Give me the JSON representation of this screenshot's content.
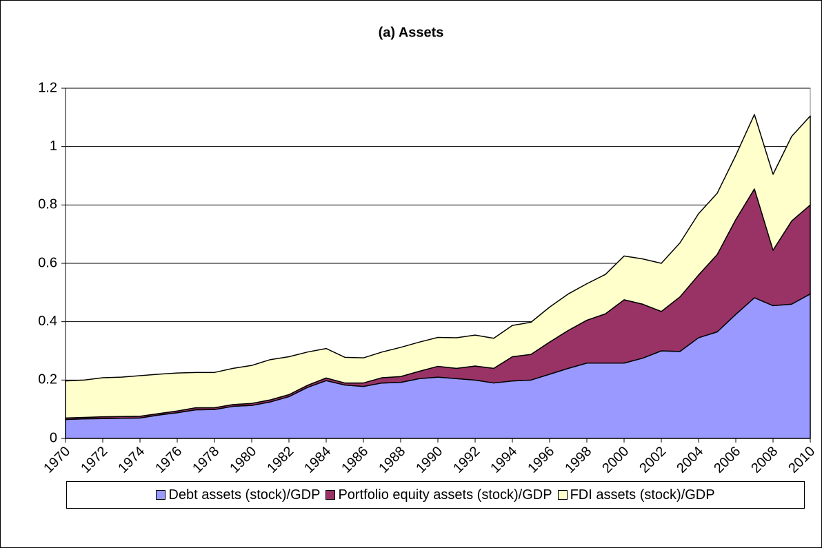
{
  "chart_data": {
    "type": "stacked_area",
    "title": "(a) Assets",
    "x": [
      1970,
      1971,
      1972,
      1973,
      1974,
      1975,
      1976,
      1977,
      1978,
      1979,
      1980,
      1981,
      1982,
      1983,
      1984,
      1985,
      1986,
      1987,
      1988,
      1989,
      1990,
      1991,
      1992,
      1993,
      1994,
      1995,
      1996,
      1997,
      1998,
      1999,
      2000,
      2001,
      2002,
      2003,
      2004,
      2005,
      2006,
      2007,
      2008,
      2009,
      2010
    ],
    "xlim": [
      1970,
      2010
    ],
    "xticks": [
      1970,
      1972,
      1974,
      1976,
      1978,
      1980,
      1982,
      1984,
      1986,
      1988,
      1990,
      1992,
      1994,
      1996,
      1998,
      2000,
      2002,
      2004,
      2006,
      2008,
      2010
    ],
    "ylim": [
      0,
      1.2
    ],
    "yticks": [
      0,
      0.2,
      0.4,
      0.6,
      0.8,
      1,
      1.2
    ],
    "grid": true,
    "legend": "bottom",
    "series": [
      {
        "name": "Debt assets (stock)/GDP",
        "color": "#9999ff",
        "values": [
          0.065,
          0.067,
          0.068,
          0.069,
          0.07,
          0.08,
          0.088,
          0.098,
          0.099,
          0.11,
          0.113,
          0.125,
          0.143,
          0.175,
          0.198,
          0.183,
          0.178,
          0.19,
          0.192,
          0.205,
          0.21,
          0.205,
          0.2,
          0.19,
          0.197,
          0.2,
          0.22,
          0.24,
          0.258,
          0.258,
          0.258,
          0.275,
          0.3,
          0.298,
          0.345,
          0.365,
          0.425,
          0.482,
          0.455,
          0.46,
          0.495
        ]
      },
      {
        "name": "Portfolio equity assets (stock)/GDP",
        "color": "#993366",
        "values": [
          0.005,
          0.005,
          0.006,
          0.006,
          0.006,
          0.005,
          0.006,
          0.007,
          0.006,
          0.006,
          0.007,
          0.007,
          0.007,
          0.007,
          0.009,
          0.007,
          0.012,
          0.018,
          0.02,
          0.025,
          0.037,
          0.035,
          0.048,
          0.05,
          0.083,
          0.088,
          0.11,
          0.13,
          0.147,
          0.169,
          0.217,
          0.185,
          0.135,
          0.187,
          0.215,
          0.265,
          0.325,
          0.373,
          0.19,
          0.285,
          0.305
        ]
      },
      {
        "name": "FDI assets (stock)/GDP",
        "color": "#ffffcc",
        "values": [
          0.127,
          0.128,
          0.134,
          0.135,
          0.139,
          0.135,
          0.13,
          0.121,
          0.121,
          0.124,
          0.13,
          0.138,
          0.13,
          0.114,
          0.101,
          0.088,
          0.086,
          0.088,
          0.1,
          0.1,
          0.099,
          0.105,
          0.106,
          0.103,
          0.107,
          0.11,
          0.12,
          0.125,
          0.125,
          0.135,
          0.15,
          0.155,
          0.165,
          0.185,
          0.21,
          0.21,
          0.22,
          0.255,
          0.26,
          0.29,
          0.305
        ]
      }
    ]
  }
}
